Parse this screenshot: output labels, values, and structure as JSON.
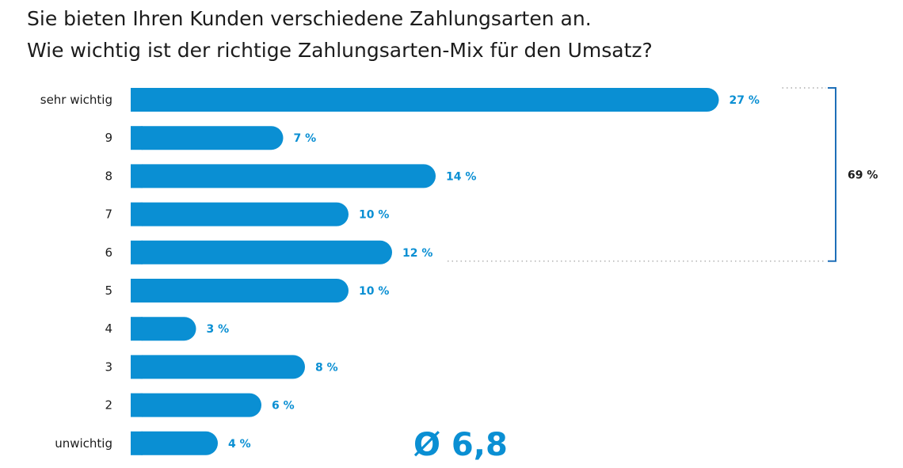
{
  "title_line1": "Sie bieten Ihren Kunden verschiedene Zahlungsarten an.",
  "title_line2": "Wie wichtig ist der richtige Zahlungsarten-Mix für den Umsatz?",
  "accent_color": "#0a8fd3",
  "text_color": "#1c1c1c",
  "bracket_color": "#1e6fb8",
  "average_label": "Ø 6,8",
  "chart_data": {
    "type": "bar",
    "orientation": "horizontal",
    "categories": [
      "sehr wichtig",
      "9",
      "8",
      "7",
      "6",
      "5",
      "4",
      "3",
      "2",
      "unwichtig"
    ],
    "values": [
      27,
      7,
      14,
      10,
      12,
      10,
      3,
      8,
      6,
      4
    ],
    "value_labels": [
      "27 %",
      "7 %",
      "14 %",
      "10 %",
      "12 %",
      "10 %",
      "3 %",
      "8 %",
      "6 %",
      "4 %"
    ],
    "unit": "%",
    "grid": false,
    "legend": "none",
    "bracket": {
      "from_category": "sehr wichtig",
      "to_category": "6",
      "label": "69 %"
    },
    "average": 6.8
  }
}
